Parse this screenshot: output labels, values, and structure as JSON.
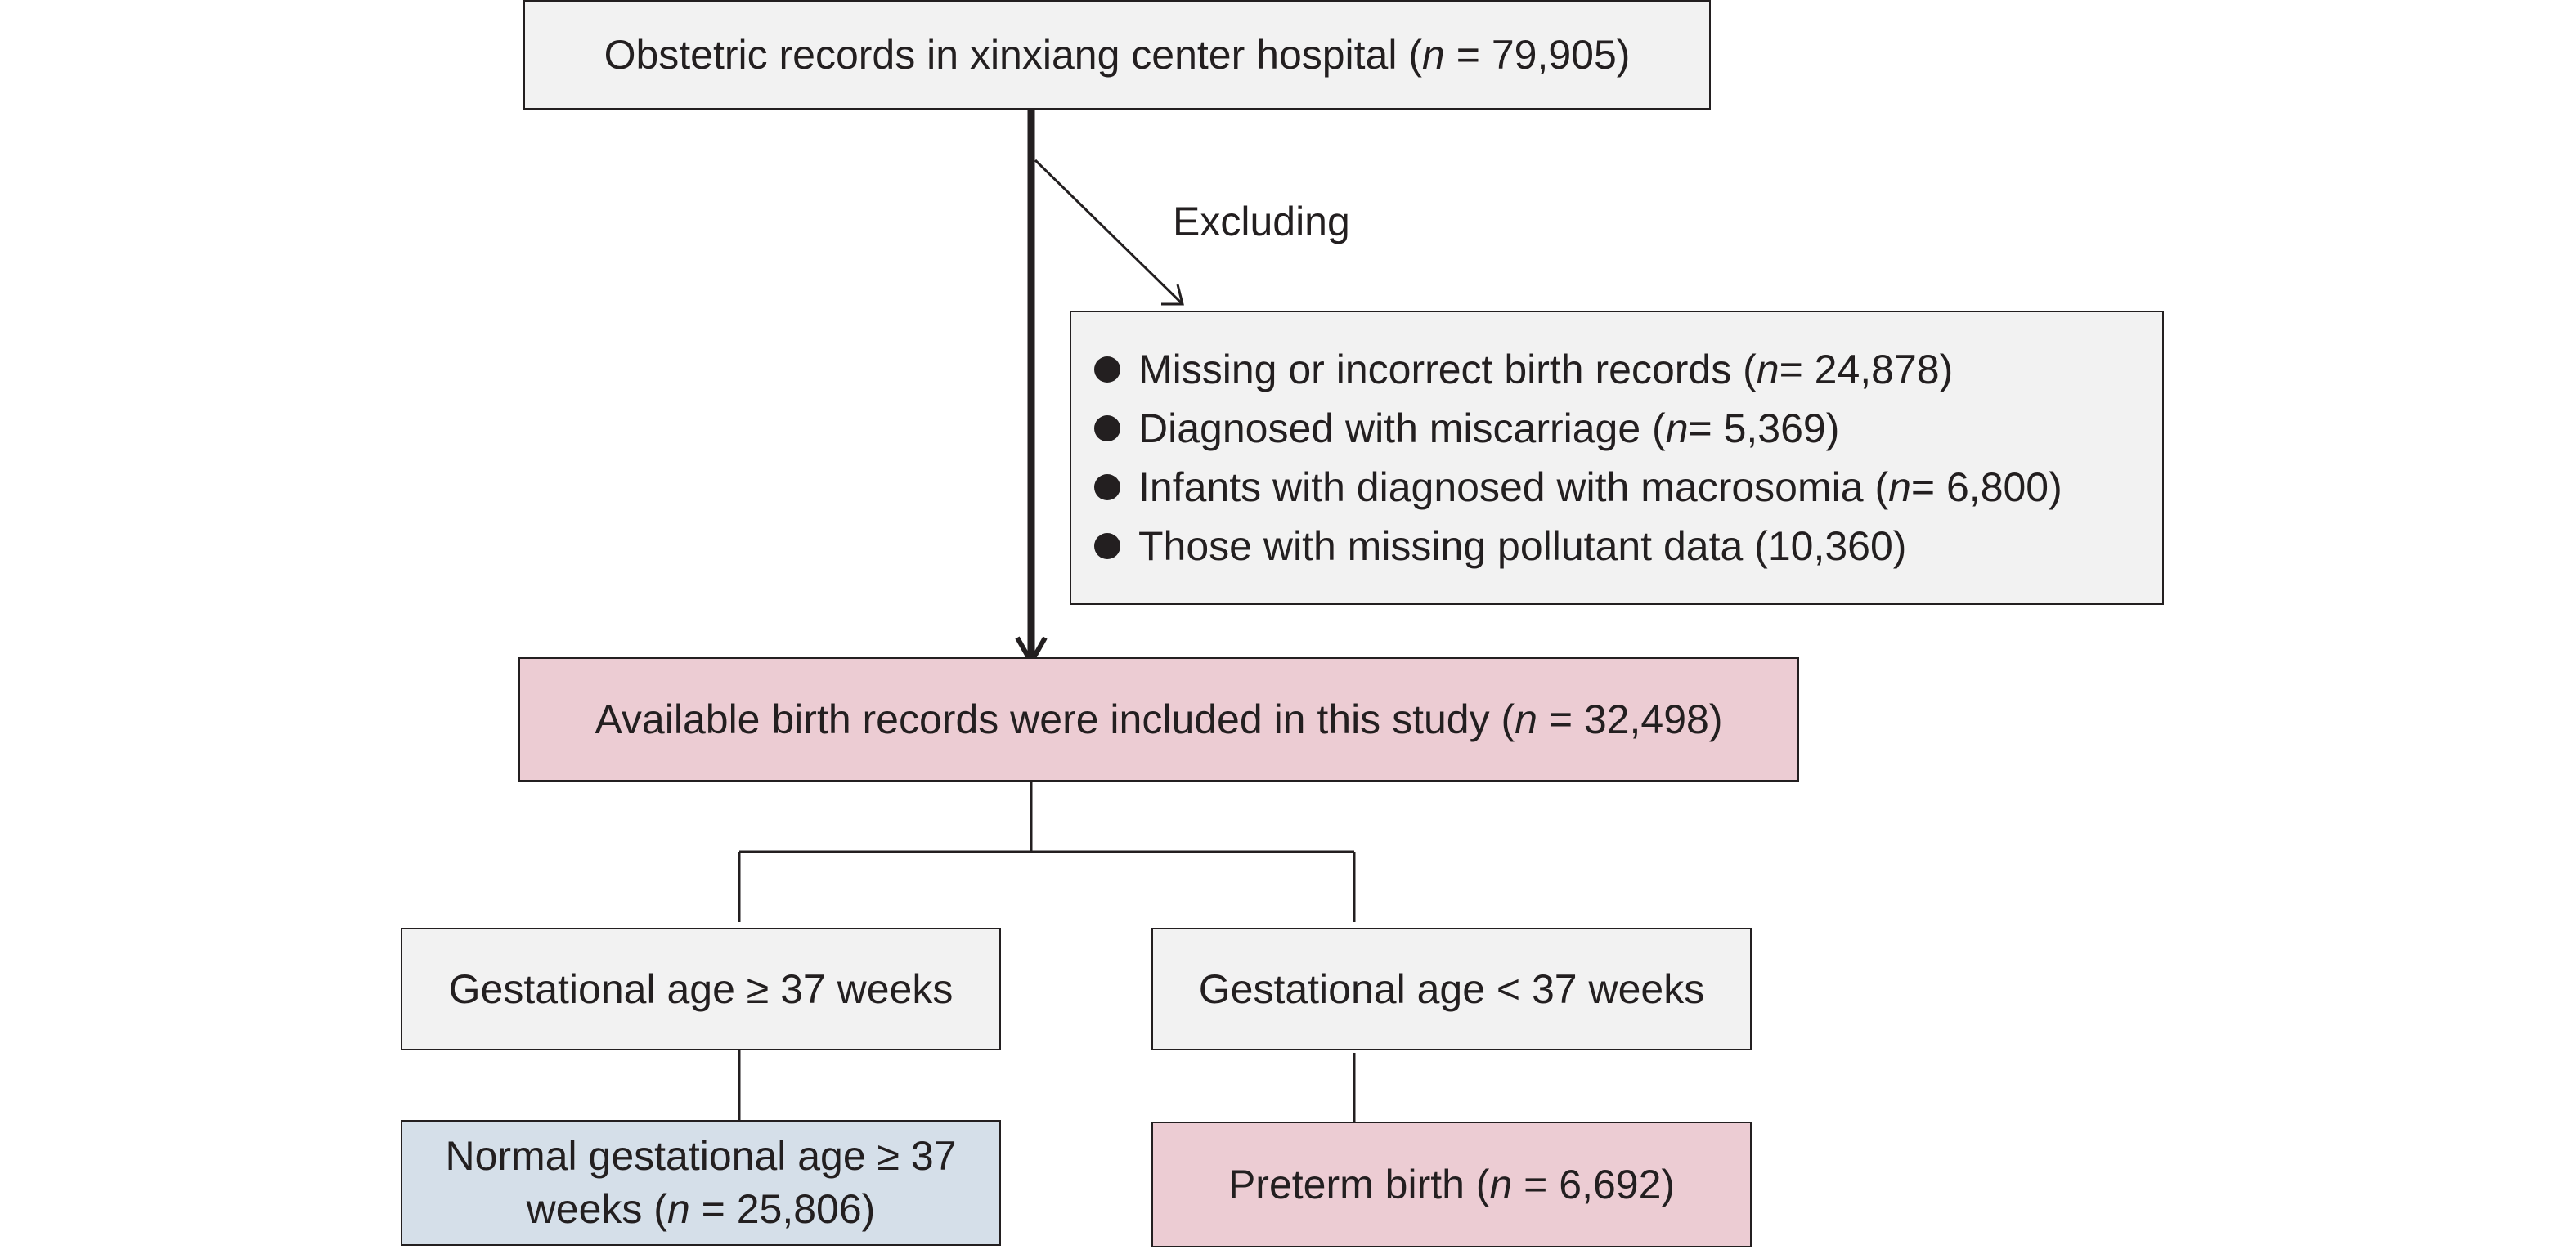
{
  "source": {
    "text": "Obstetric records in xinxiang center hospital (",
    "n_label": "n",
    "value": " = 79,905)"
  },
  "excluding_label": "Excluding",
  "exclusions": [
    {
      "text": "Missing or incorrect birth records (",
      "n_label": "n",
      "value": " = 24,878)"
    },
    {
      "text": "Diagnosed with miscarriage (",
      "n_label": "n",
      "value": " = 5,369)"
    },
    {
      "text": "Infants with diagnosed with macrosomia (",
      "n_label": "n",
      "value": " = 6,800)"
    },
    {
      "text": "Those with missing pollutant data (10,360)",
      "n_label": "",
      "value": ""
    }
  ],
  "included": {
    "text": "Available birth records were included in this study (",
    "n_label": "n",
    "value": " = 32,498)"
  },
  "term_ga": {
    "text": "Gestational age ≥ 37 weeks"
  },
  "preterm_ga": {
    "text": "Gestational age < 37 weeks"
  },
  "normal": {
    "text": "Normal gestational age ≥ 37 weeks (",
    "n_label": "n",
    "value": " = 25,806)"
  },
  "preterm": {
    "text": "Preterm birth (",
    "n_label": "n",
    "value": " = 6,692)"
  },
  "colors": {
    "line": "#231f20",
    "grey_box": "#f2f2f2",
    "pink_box": "#ecccd3",
    "blue_box": "#d5dfe9"
  }
}
